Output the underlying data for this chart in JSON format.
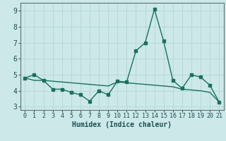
{
  "xlabel": "Humidex (Indice chaleur)",
  "xlim": [
    -0.5,
    21.5
  ],
  "ylim": [
    2.8,
    9.5
  ],
  "yticks": [
    3,
    4,
    5,
    6,
    7,
    8,
    9
  ],
  "xticks": [
    0,
    1,
    2,
    3,
    4,
    5,
    6,
    7,
    8,
    9,
    10,
    11,
    12,
    13,
    14,
    15,
    16,
    17,
    18,
    19,
    20,
    21
  ],
  "bg_color": "#cce8e8",
  "grid_color": "#b8d8d8",
  "line_color": "#1a7060",
  "line1_x": [
    0,
    1,
    2,
    3,
    4,
    5,
    6,
    7,
    8,
    9,
    10,
    11,
    12,
    13,
    14,
    15,
    16,
    17,
    18,
    19,
    20,
    21
  ],
  "line1_y": [
    4.8,
    5.0,
    4.65,
    4.1,
    4.1,
    3.9,
    3.75,
    3.35,
    4.0,
    3.75,
    4.6,
    4.55,
    6.5,
    7.0,
    9.1,
    7.1,
    4.65,
    4.15,
    5.0,
    4.85,
    4.35,
    3.3
  ],
  "line2_x": [
    0,
    1,
    2,
    3,
    4,
    5,
    6,
    7,
    8,
    9,
    10,
    11,
    12,
    13,
    14,
    15,
    16,
    17,
    18,
    19,
    20,
    21
  ],
  "line2_y": [
    4.8,
    4.65,
    4.65,
    4.6,
    4.55,
    4.5,
    4.45,
    4.4,
    4.35,
    4.3,
    4.55,
    4.5,
    4.45,
    4.4,
    4.35,
    4.3,
    4.25,
    4.1,
    4.05,
    4.0,
    3.9,
    3.3
  ],
  "marker_size": 2.5,
  "linewidth": 1.0
}
